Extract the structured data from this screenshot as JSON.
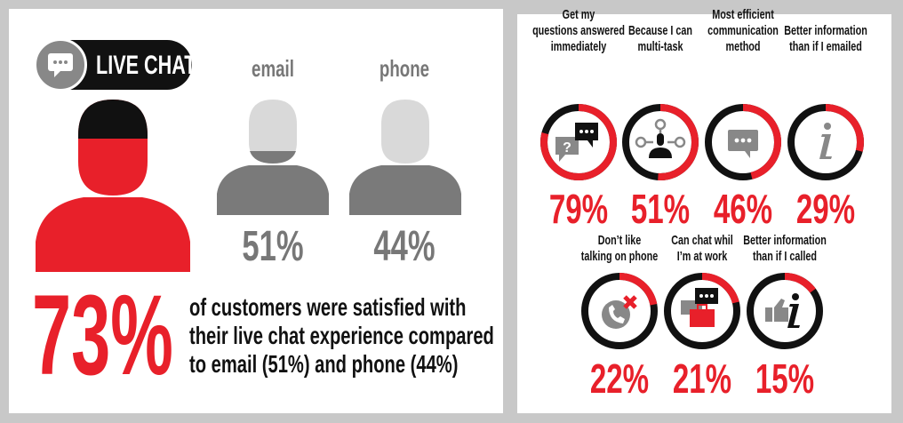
{
  "colors": {
    "accent": "#e8202a",
    "dark": "#111111",
    "gray": "#7a7a7a",
    "light_gray": "#d9d9d9"
  },
  "left": {
    "badge": {
      "label": "LIVE CHAT",
      "icon": "chat-bubble-icon"
    },
    "channels": [
      {
        "label": "email",
        "percent": "51%",
        "value": 51
      },
      {
        "label": "phone",
        "percent": "44%",
        "value": 44
      }
    ],
    "headline_percent": "73%",
    "headline_text": [
      "of customers were satisfied with",
      "their live chat experience compared",
      "to email (51%) and phone (44%)"
    ]
  },
  "right": {
    "reasons": [
      {
        "label": [
          "Get my",
          "questions answered",
          "immediately"
        ],
        "percent": "79%",
        "value": 79,
        "icon": "question-chat-icon"
      },
      {
        "label": [
          "Because I can",
          "multi-task"
        ],
        "percent": "51%",
        "value": 51,
        "icon": "multitask-person-icon"
      },
      {
        "label": [
          "Most efficient",
          "communication",
          "method"
        ],
        "percent": "46%",
        "value": 46,
        "icon": "chat-bubble-icon"
      },
      {
        "label": [
          "Better information",
          "than if I emailed"
        ],
        "percent": "29%",
        "value": 29,
        "icon": "info-icon"
      },
      {
        "label": [
          "Don’t like",
          "talking on phone"
        ],
        "percent": "22%",
        "value": 22,
        "icon": "phone-cancel-icon"
      },
      {
        "label": [
          "Can chat whil",
          "I’m at work"
        ],
        "percent": "21%",
        "value": 21,
        "icon": "briefcase-chat-icon"
      },
      {
        "label": [
          "Better information",
          "than if I called"
        ],
        "percent": "15%",
        "value": 15,
        "icon": "thumbs-info-icon"
      }
    ]
  }
}
